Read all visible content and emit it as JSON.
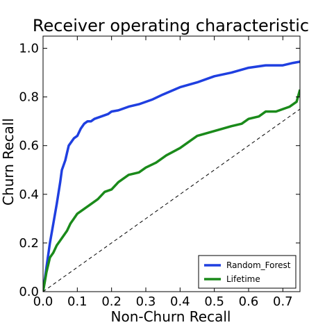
{
  "chart_data": {
    "type": "line",
    "title": "Receiver operating characteristic",
    "xlabel": "Non-Churn Recall",
    "ylabel": "Churn Recall",
    "xlim": [
      0.0,
      0.75
    ],
    "ylim": [
      0.0,
      1.05
    ],
    "xticks": [
      0.0,
      0.1,
      0.2,
      0.3,
      0.4,
      0.5,
      0.6,
      0.7
    ],
    "xtick_labels": [
      "0.0",
      "0.1",
      "0.2",
      "0.3",
      "0.4",
      "0.5",
      "0.6",
      "0.7"
    ],
    "yticks": [
      0.0,
      0.2,
      0.4,
      0.6,
      0.8,
      1.0
    ],
    "ytick_labels": [
      "0.0",
      "0.2",
      "0.4",
      "0.6",
      "0.8",
      "1.0"
    ],
    "grid": false,
    "legend_position": "lower-right",
    "series": [
      {
        "name": "Random_Forest",
        "color": "#1f3fe0",
        "style": "solid",
        "x": [
          0.0,
          0.005,
          0.01,
          0.015,
          0.02,
          0.03,
          0.04,
          0.05,
          0.055,
          0.06,
          0.065,
          0.07,
          0.075,
          0.08,
          0.09,
          0.1,
          0.11,
          0.12,
          0.13,
          0.14,
          0.15,
          0.17,
          0.19,
          0.2,
          0.22,
          0.25,
          0.28,
          0.32,
          0.35,
          0.4,
          0.45,
          0.48,
          0.5,
          0.55,
          0.6,
          0.65,
          0.7,
          0.73,
          0.75
        ],
        "y": [
          0.0,
          0.05,
          0.1,
          0.15,
          0.2,
          0.28,
          0.36,
          0.45,
          0.5,
          0.52,
          0.54,
          0.57,
          0.6,
          0.61,
          0.63,
          0.64,
          0.67,
          0.69,
          0.7,
          0.7,
          0.71,
          0.72,
          0.73,
          0.74,
          0.745,
          0.76,
          0.77,
          0.79,
          0.81,
          0.84,
          0.86,
          0.875,
          0.885,
          0.9,
          0.92,
          0.93,
          0.93,
          0.94,
          0.945
        ]
      },
      {
        "name": "Lifetime",
        "color": "#1a8a1a",
        "style": "solid",
        "x": [
          0.0,
          0.005,
          0.01,
          0.02,
          0.03,
          0.04,
          0.05,
          0.06,
          0.07,
          0.08,
          0.09,
          0.1,
          0.12,
          0.14,
          0.16,
          0.18,
          0.2,
          0.22,
          0.25,
          0.28,
          0.3,
          0.33,
          0.36,
          0.4,
          0.43,
          0.45,
          0.5,
          0.55,
          0.58,
          0.6,
          0.63,
          0.65,
          0.68,
          0.7,
          0.72,
          0.74,
          0.75
        ],
        "y": [
          0.0,
          0.04,
          0.08,
          0.14,
          0.16,
          0.19,
          0.21,
          0.23,
          0.25,
          0.28,
          0.3,
          0.32,
          0.34,
          0.36,
          0.38,
          0.41,
          0.42,
          0.45,
          0.48,
          0.49,
          0.51,
          0.53,
          0.56,
          0.59,
          0.62,
          0.64,
          0.66,
          0.68,
          0.69,
          0.71,
          0.72,
          0.74,
          0.74,
          0.75,
          0.76,
          0.78,
          0.83
        ]
      },
      {
        "name": "",
        "color": "#000000",
        "style": "dashed",
        "x": [
          0.0,
          0.75
        ],
        "y": [
          0.0,
          0.75
        ]
      }
    ]
  }
}
